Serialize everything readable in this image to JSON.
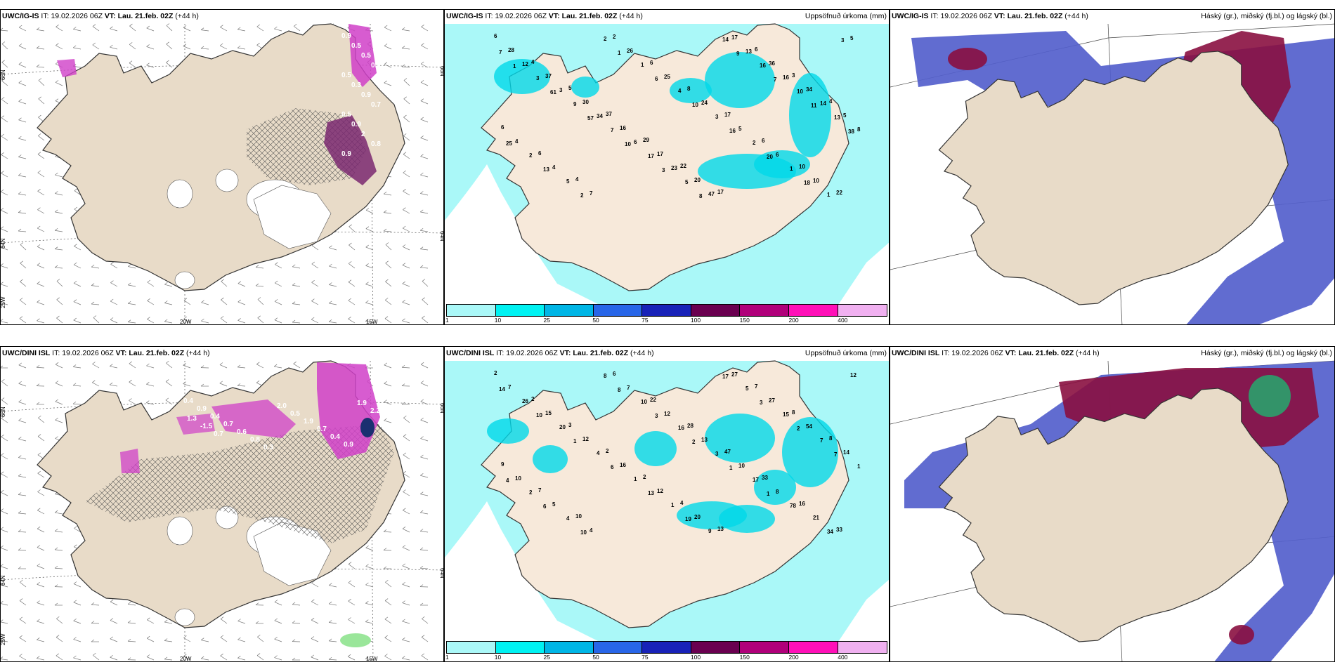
{
  "rows": [
    {
      "model": "UWC/IG-IS",
      "it_label": "IT:",
      "it_value": "19.02.2026 06Z",
      "vt_label": "VT:",
      "vt_value": "Lau. 21.feb. 02Z",
      "lead": "(+44 h)",
      "precip_title": "Uppsöfnuð úrkoma (mm)",
      "cloud_title": "Háský (gr.), miðský (fj.bl.) og lágský (bl.)",
      "precip_values": [
        "6",
        "4",
        "5",
        "37",
        "29",
        "22",
        "17",
        "6",
        "3",
        "4",
        "6",
        "6",
        "4",
        "2",
        "6",
        "8",
        "17",
        "6",
        "10",
        "22",
        "28",
        "37",
        "30",
        "16",
        "17",
        "20",
        "17",
        "36",
        "34",
        "5",
        "4",
        "4",
        "7",
        "26",
        "25",
        "24",
        "5",
        "6",
        "10",
        "5",
        "12",
        "3",
        "34",
        "6",
        "23",
        "47",
        "13",
        "16",
        "14",
        "8",
        "2",
        "5",
        "2",
        "1",
        "4",
        "3",
        "2",
        "1",
        "1",
        "7",
        "3",
        "9",
        "7",
        "17",
        "5",
        "14",
        "16",
        "10",
        "13",
        "25",
        "13",
        "2",
        "1",
        "6",
        "10",
        "16",
        "20",
        "18",
        "3",
        "1",
        "61",
        "57",
        "10",
        "3",
        "8",
        "9",
        "7",
        "11",
        "38"
      ]
    },
    {
      "model": "UWC/DINI ISL",
      "it_label": "IT:",
      "it_value": "19.02.2026 06Z",
      "vt_label": "VT:",
      "vt_value": "Lau. 21.feb. 02Z",
      "lead": "(+44 h)",
      "precip_title": "Uppsöfnuð úrkoma (mm)",
      "cloud_title": "Háský (gr.), miðský (fj.bl.) og lágský (bl.)",
      "precip_values": [
        "2",
        "2",
        "3",
        "2",
        "2",
        "4",
        "13",
        "7",
        "8",
        "8",
        "9",
        "7",
        "10",
        "6",
        "22",
        "28",
        "47",
        "33",
        "16",
        "33",
        "7",
        "15",
        "12",
        "16",
        "12",
        "20",
        "27",
        "27",
        "54",
        "14",
        "10",
        "5",
        "4",
        "7",
        "12",
        "13",
        "10",
        "8",
        "21",
        "12",
        "26",
        "20",
        "4",
        "1",
        "1",
        "9",
        "5",
        "15",
        "7",
        "1",
        "2",
        "4",
        "8",
        "10",
        "16",
        "3",
        "17",
        "78",
        "34",
        "14",
        "10",
        "1",
        "6",
        "13",
        "19",
        "17",
        "3",
        "2",
        "7",
        "4",
        "6",
        "10",
        "8",
        "3",
        "2",
        "1",
        "1"
      ]
    }
  ],
  "map_labels": {
    "lat_66": "66N",
    "lat_64": "64N",
    "lat_65": "65N",
    "lon_25": "25W",
    "lon_20": "20W",
    "lon_15": "15W",
    "lat_66b": "66N",
    "lat_64b": "64N"
  },
  "wind_labels_row1": [
    "0.9",
    "0.5",
    "0.5",
    "0.4",
    "0.5",
    "0.3",
    "0.9",
    "0.7",
    "0.5",
    "0.9",
    "2",
    "0.8",
    "0.9"
  ],
  "wind_labels_row2": [
    "0.4",
    "0.9",
    "0.4",
    "0.7",
    "0.6",
    "0.8",
    "0.3",
    "2.0",
    "0.5",
    "1.9",
    "0.7",
    "0.4",
    "0.9",
    "1.9",
    "2.2",
    "1.3",
    "-1.5",
    "0.7"
  ],
  "colorbar": {
    "ticks": [
      "1",
      "10",
      "25",
      "50",
      "75",
      "100",
      "150",
      "200",
      "400"
    ],
    "colors": [
      "#aaf8f8",
      "#00f2f2",
      "#00b6e6",
      "#2866e8",
      "#1822b8",
      "#6a0050",
      "#b0007a",
      "#ff10b8",
      "#f0b0f0"
    ]
  },
  "colors": {
    "land": "#e8dbc8",
    "land_light": "#f7e9da",
    "precip_light": "#aaf8f8",
    "precip_mid": "#00d8e8",
    "magenta": "#d040c8",
    "purple": "#7a2870",
    "high_cloud": "#8a1040",
    "mid_cloud": "#5460cc",
    "low_cloud": "#3b44b8"
  }
}
